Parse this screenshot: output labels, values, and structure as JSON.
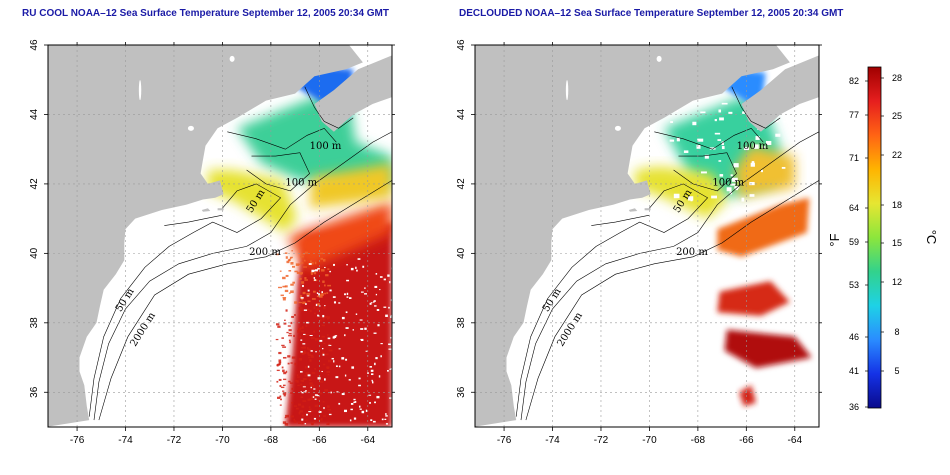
{
  "panels": [
    {
      "title": "RU COOL NOAA–12 Sea Surface Temperature September 12, 2005 20:34 GMT"
    },
    {
      "title": "DECLOUDED NOAA–12 Sea Surface Temperature September 12, 2005 20:34 GMT"
    }
  ],
  "axes": {
    "x_ticks": [
      -76,
      -74,
      -72,
      -70,
      -68,
      -66,
      -64
    ],
    "y_ticks": [
      36,
      38,
      40,
      42,
      44,
      46
    ],
    "x_range": [
      -77.2,
      -63
    ],
    "y_range": [
      35,
      46
    ]
  },
  "contour_labels": [
    {
      "text": "100 m",
      "lon": -66.4,
      "lat": 43.0
    },
    {
      "text": "100 m",
      "lon": -67.4,
      "lat": 41.95
    },
    {
      "text": "50 m",
      "lon": -68.8,
      "lat": 41.15
    },
    {
      "text": "200 m",
      "lon": -68.9,
      "lat": 39.95
    },
    {
      "text": "50 m",
      "lon": -74.2,
      "lat": 38.3
    },
    {
      "text": "2000 m",
      "lon": -73.6,
      "lat": 37.3
    }
  ],
  "colorbar": {
    "fahrenheit_ticks": [
      "82",
      "77",
      "71",
      "64",
      "59",
      "53",
      "46",
      "41",
      "36"
    ],
    "celsius_ticks": [
      "28",
      "25",
      "22",
      "18",
      "15",
      "12",
      "8",
      "5"
    ],
    "fahrenheit_label": "°F",
    "celsius_label": "°C",
    "colors": [
      "#0a0a8c",
      "#1432e6",
      "#2a8cff",
      "#1ed2e6",
      "#32d28c",
      "#8ce63c",
      "#e6e632",
      "#ffb400",
      "#ff6414",
      "#e61e1e",
      "#a00000"
    ]
  },
  "colors": {
    "land": "#c0c0c0",
    "ocean": "#ffffff",
    "frame": "#000000",
    "grid": "#9a9a9a"
  }
}
